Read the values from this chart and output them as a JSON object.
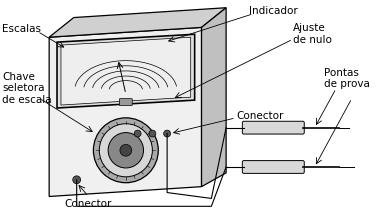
{
  "background_color": "#ffffff",
  "labels": {
    "indicador": "Indicador",
    "escalas": "Escalas",
    "ajuste_de_nulo": "Ajuste\nde nulo",
    "chave_seletora": "Chave\nseletora\nde escala",
    "conector_right": "Conector",
    "conector_bottom": "Conector",
    "pontas_de_prova": "Pontas\nde prova"
  },
  "font_size": 7.5,
  "line_color": "#000000"
}
